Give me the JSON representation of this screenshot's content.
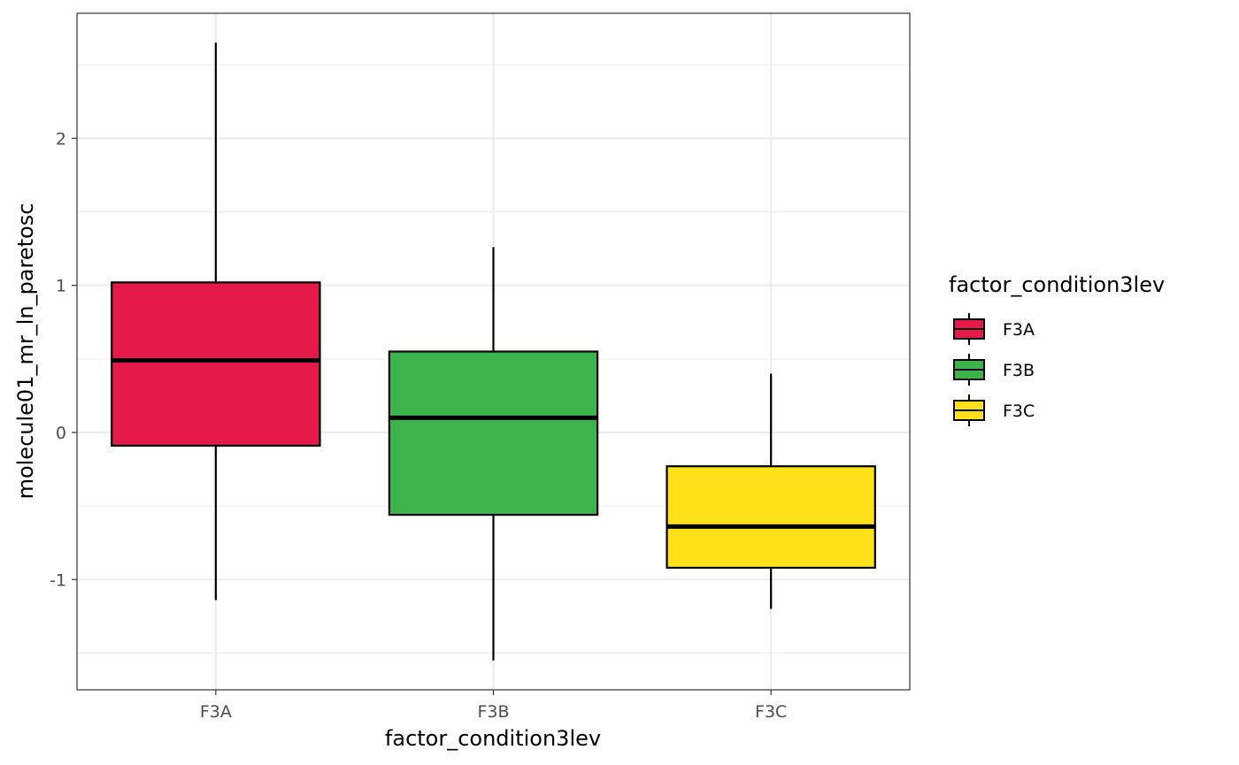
{
  "chart_data": {
    "type": "boxplot",
    "title": "",
    "xlabel": "factor_condition3lev",
    "ylabel": "molecule01_mr_ln_paretosc",
    "ylim": [
      -1.75,
      2.85
    ],
    "yticks": [
      -1,
      0,
      1,
      2
    ],
    "ytick_labels": [
      "-1",
      "0",
      "1",
      "2"
    ],
    "grid": true,
    "legend": {
      "title": "factor_condition3lev",
      "position": "right"
    },
    "categories": [
      "F3A",
      "F3B",
      "F3C"
    ],
    "boxes": [
      {
        "category": "F3A",
        "min": -1.14,
        "q1": -0.09,
        "median": 0.49,
        "q3": 1.02,
        "max": 2.65,
        "color": "#E5194A"
      },
      {
        "category": "F3B",
        "min": -1.55,
        "q1": -0.56,
        "median": 0.1,
        "q3": 0.55,
        "max": 1.26,
        "color": "#3CB44B"
      },
      {
        "category": "F3C",
        "min": -1.2,
        "q1": -0.92,
        "median": -0.64,
        "q3": -0.23,
        "max": 0.4,
        "color": "#FFE119"
      }
    ]
  }
}
